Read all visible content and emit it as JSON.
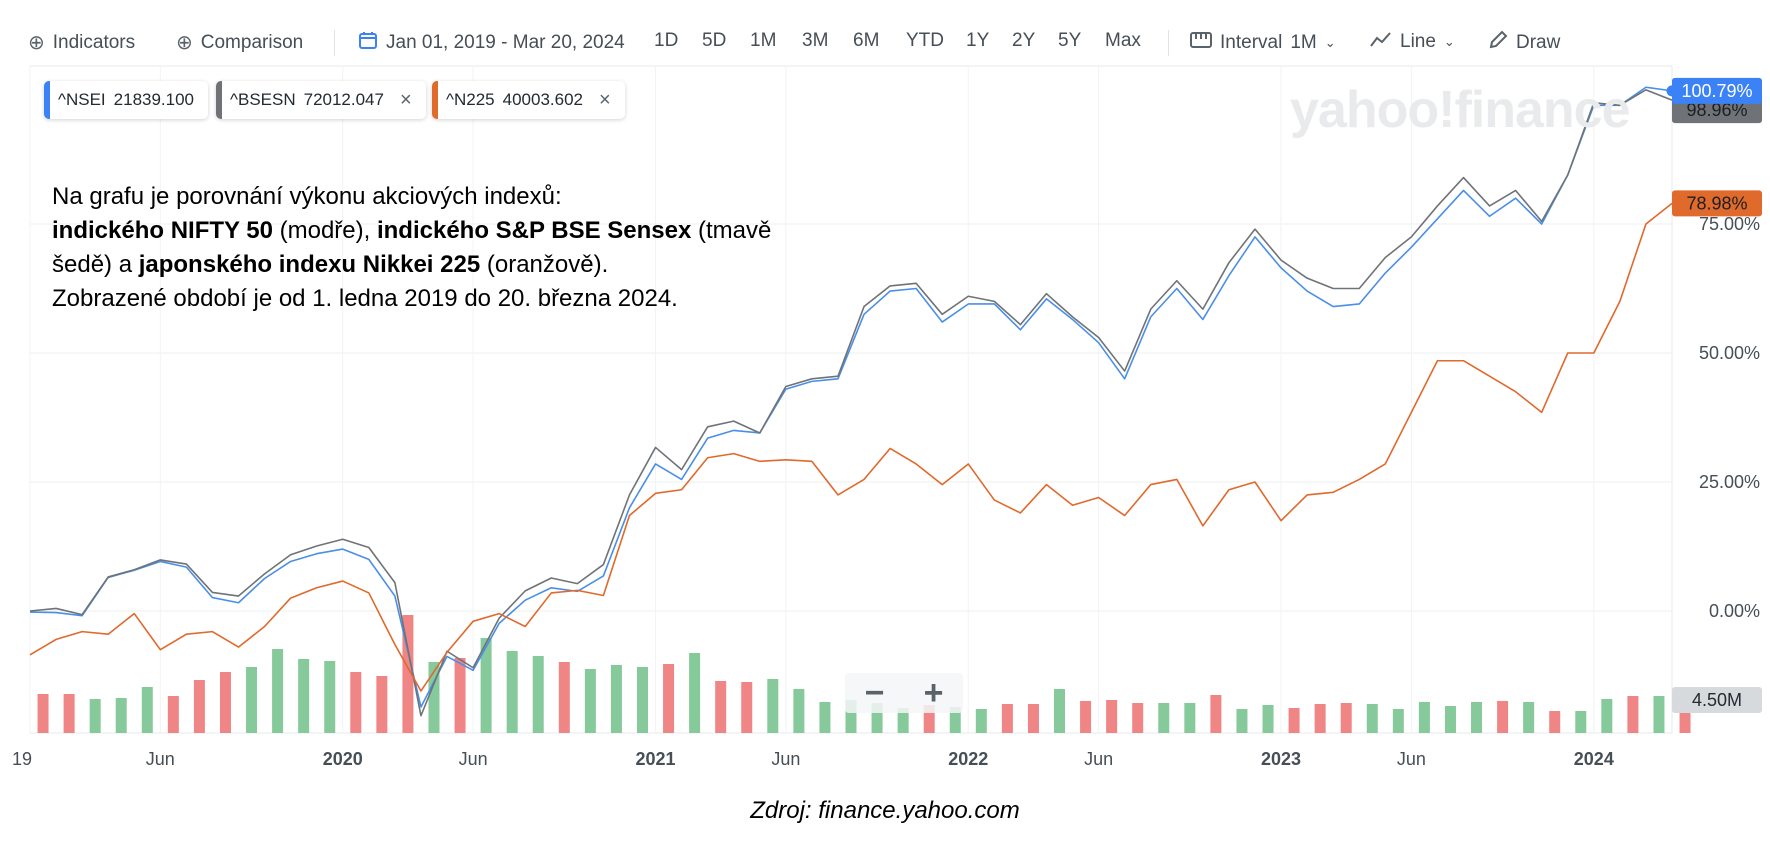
{
  "toolbar": {
    "indicators": "Indicators",
    "comparison": "Comparison",
    "date_range": "Jan 01, 2019 - Mar 20, 2024",
    "ranges": [
      "1D",
      "5D",
      "1M",
      "3M",
      "6M",
      "YTD",
      "1Y",
      "2Y",
      "5Y",
      "Max"
    ],
    "interval_label": "Interval",
    "interval_value": "1M",
    "chart_type": "Line",
    "draw": "Draw"
  },
  "watermark": "yahoo!finance",
  "chips": [
    {
      "symbol": "^NSEI",
      "value": "21839.100",
      "color": "#3b82f6",
      "closable": false
    },
    {
      "symbol": "^BSESN",
      "value": "72012.047",
      "color": "#6f7378",
      "closable": true
    },
    {
      "symbol": "^N225",
      "value": "40003.602",
      "color": "#e0692c",
      "closable": true
    }
  ],
  "annotation": {
    "line1": "Na grafu je porovnání výkonu akciových indexů:",
    "l2_b1": "indického NIFTY 50",
    "l2_t1": " (modře), ",
    "l2_b2": "indického S&P BSE Sensex",
    "l2_t2": " (tmavě",
    "l3_t1": "šedě) a ",
    "l3_b1": "japonského indexu Nikkei 225",
    "l3_t2": " (oranžově).",
    "line4": "Zobrazené období je od 1. ledna 2019 do 20. března 2024."
  },
  "source": "Zdroj: finance.yahoo.com",
  "zoom": {
    "minus": "−",
    "plus": "+"
  },
  "chart_data": {
    "type": "line",
    "x_start": "2019-01",
    "x_ticks": [
      {
        "label": "19",
        "month_index": 0
      },
      {
        "label": "Jun",
        "month_index": 5
      },
      {
        "label": "2020",
        "month_index": 12
      },
      {
        "label": "Jun",
        "month_index": 17
      },
      {
        "label": "2021",
        "month_index": 24
      },
      {
        "label": "Jun",
        "month_index": 29
      },
      {
        "label": "2022",
        "month_index": 36
      },
      {
        "label": "Jun",
        "month_index": 41
      },
      {
        "label": "2023",
        "month_index": 48
      },
      {
        "label": "Jun",
        "month_index": 53
      },
      {
        "label": "2024",
        "month_index": 60
      }
    ],
    "y_ticks": [
      "0.00%",
      "25.00%",
      "50.00%",
      "75.00%"
    ],
    "y_tick_values": [
      0,
      25,
      50,
      75
    ],
    "ylim": [
      -24,
      103
    ],
    "x_months": 63,
    "grid": true,
    "series": [
      {
        "name": "^NSEI",
        "color": "#4a8fe7",
        "last_label": "100.79%",
        "values": [
          -0.2,
          -0.3,
          -0.9,
          6.5,
          7.9,
          9.6,
          8.5,
          2.6,
          1.6,
          6.3,
          9.6,
          11.1,
          12.0,
          10.0,
          2.9,
          -18.6,
          -8.8,
          -11.5,
          -2.4,
          2.1,
          4.5,
          3.8,
          6.8,
          20.0,
          28.5,
          25.5,
          33.5,
          35.0,
          34.5,
          43.0,
          44.5,
          45.0,
          57.5,
          62.0,
          62.5,
          56.0,
          59.5,
          59.5,
          54.5,
          60.5,
          56.5,
          52.0,
          45.0,
          57.0,
          62.5,
          56.5,
          65.0,
          72.5,
          66.5,
          62.0,
          59.0,
          59.5,
          65.5,
          70.5,
          76.0,
          81.5,
          76.5,
          80.0,
          75.0,
          84.5,
          98.0,
          98.0,
          101.5,
          100.8
        ]
      },
      {
        "name": "^BSESN",
        "color": "#6f7378",
        "last_label": "98.96%",
        "values": [
          0.0,
          0.5,
          -0.7,
          6.6,
          8.0,
          9.9,
          9.1,
          3.6,
          2.9,
          7.2,
          10.9,
          12.6,
          13.9,
          12.3,
          5.5,
          -20.3,
          -7.8,
          -11.0,
          -1.4,
          3.9,
          6.4,
          5.3,
          9.0,
          22.5,
          31.7,
          27.4,
          35.7,
          36.8,
          34.5,
          43.5,
          45.0,
          45.5,
          59.0,
          63.0,
          63.5,
          57.5,
          61.0,
          60.0,
          55.5,
          61.5,
          57.0,
          53.0,
          46.5,
          58.5,
          64.0,
          58.5,
          67.5,
          74.0,
          68.0,
          64.5,
          62.5,
          62.5,
          68.5,
          72.5,
          78.5,
          84.0,
          78.5,
          81.5,
          75.5,
          84.5,
          98.5,
          98.0,
          101.0,
          99.0
        ]
      },
      {
        "name": "^N225",
        "color": "#e0692c",
        "last_label": "78.98%",
        "values": [
          -8.5,
          -5.5,
          -4.0,
          -4.5,
          -0.5,
          -7.5,
          -4.5,
          -4.0,
          -7.0,
          -3.0,
          2.5,
          4.5,
          5.8,
          3.5,
          -6.5,
          -15.5,
          -8.0,
          -2.0,
          -0.5,
          -3.0,
          3.5,
          4.0,
          3.0,
          18.5,
          22.8,
          23.5,
          29.7,
          30.5,
          29.0,
          29.3,
          29.0,
          22.5,
          25.5,
          31.5,
          28.5,
          24.5,
          28.5,
          21.5,
          19.0,
          24.5,
          20.5,
          22.0,
          18.5,
          24.5,
          25.5,
          16.5,
          23.5,
          25.0,
          17.5,
          22.5,
          23.0,
          25.5,
          28.5,
          38.5,
          48.5,
          48.5,
          45.5,
          42.5,
          38.5,
          50.0,
          50.0,
          60.0,
          75.0,
          79.0
        ]
      }
    ],
    "volume": {
      "label": "4.50M",
      "bars": [
        {
          "dir": "down",
          "h": 39
        },
        {
          "dir": "down",
          "h": 39
        },
        {
          "dir": "up",
          "h": 34
        },
        {
          "dir": "up",
          "h": 35
        },
        {
          "dir": "up",
          "h": 46
        },
        {
          "dir": "down",
          "h": 37
        },
        {
          "dir": "down",
          "h": 53
        },
        {
          "dir": "down",
          "h": 61
        },
        {
          "dir": "up",
          "h": 66
        },
        {
          "dir": "up",
          "h": 84
        },
        {
          "dir": "up",
          "h": 74
        },
        {
          "dir": "up",
          "h": 72
        },
        {
          "dir": "down",
          "h": 61
        },
        {
          "dir": "down",
          "h": 57
        },
        {
          "dir": "down",
          "h": 118
        },
        {
          "dir": "up",
          "h": 71
        },
        {
          "dir": "down",
          "h": 75
        },
        {
          "dir": "up",
          "h": 95
        },
        {
          "dir": "up",
          "h": 82
        },
        {
          "dir": "up",
          "h": 77
        },
        {
          "dir": "down",
          "h": 71
        },
        {
          "dir": "up",
          "h": 64
        },
        {
          "dir": "up",
          "h": 68
        },
        {
          "dir": "up",
          "h": 66
        },
        {
          "dir": "down",
          "h": 69
        },
        {
          "dir": "up",
          "h": 80
        },
        {
          "dir": "down",
          "h": 52
        },
        {
          "dir": "down",
          "h": 51
        },
        {
          "dir": "up",
          "h": 54
        },
        {
          "dir": "up",
          "h": 44
        },
        {
          "dir": "up",
          "h": 31
        },
        {
          "dir": "up",
          "h": 33
        },
        {
          "dir": "up",
          "h": 30
        },
        {
          "dir": "up",
          "h": 25
        },
        {
          "dir": "down",
          "h": 28
        },
        {
          "dir": "up",
          "h": 26
        },
        {
          "dir": "up",
          "h": 24
        },
        {
          "dir": "down",
          "h": 29
        },
        {
          "dir": "down",
          "h": 29
        },
        {
          "dir": "up",
          "h": 44
        },
        {
          "dir": "down",
          "h": 32
        },
        {
          "dir": "down",
          "h": 33
        },
        {
          "dir": "down",
          "h": 30
        },
        {
          "dir": "up",
          "h": 30
        },
        {
          "dir": "up",
          "h": 30
        },
        {
          "dir": "down",
          "h": 38
        },
        {
          "dir": "up",
          "h": 24
        },
        {
          "dir": "up",
          "h": 28
        },
        {
          "dir": "down",
          "h": 25
        },
        {
          "dir": "down",
          "h": 29
        },
        {
          "dir": "down",
          "h": 30
        },
        {
          "dir": "up",
          "h": 29
        },
        {
          "dir": "up",
          "h": 24
        },
        {
          "dir": "up",
          "h": 31
        },
        {
          "dir": "up",
          "h": 27
        },
        {
          "dir": "up",
          "h": 31
        },
        {
          "dir": "down",
          "h": 32
        },
        {
          "dir": "up",
          "h": 31
        },
        {
          "dir": "down",
          "h": 22
        },
        {
          "dir": "up",
          "h": 22
        },
        {
          "dir": "up",
          "h": 34
        },
        {
          "dir": "down",
          "h": 37
        },
        {
          "dir": "up",
          "h": 37
        },
        {
          "dir": "down",
          "h": 23
        }
      ]
    }
  }
}
